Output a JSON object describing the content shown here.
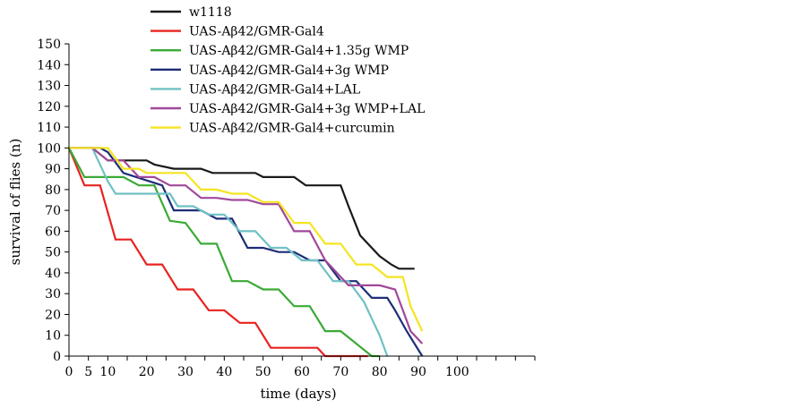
{
  "chart_data": {
    "type": "line",
    "title": "",
    "xlabel": "time (days)",
    "ylabel": "survival of flies (n)",
    "xlim": [
      0,
      120
    ],
    "ylim": [
      0,
      150
    ],
    "xticks": [
      0,
      5,
      10,
      20,
      30,
      40,
      50,
      60,
      70,
      80,
      90,
      100
    ],
    "yticks": [
      0,
      10,
      20,
      30,
      40,
      50,
      60,
      70,
      80,
      90,
      100,
      110,
      120,
      130,
      140,
      150
    ],
    "legend_position": "top",
    "series": [
      {
        "name": "w1118",
        "color": "#1a1a1a",
        "points": [
          [
            0,
            100
          ],
          [
            6,
            100
          ],
          [
            10,
            94
          ],
          [
            20,
            94
          ],
          [
            22,
            92
          ],
          [
            27,
            90
          ],
          [
            34,
            90
          ],
          [
            37,
            88
          ],
          [
            48,
            88
          ],
          [
            50,
            86
          ],
          [
            58,
            86
          ],
          [
            61,
            82
          ],
          [
            70,
            82
          ],
          [
            72,
            72
          ],
          [
            75,
            58
          ],
          [
            80,
            48
          ],
          [
            83,
            44
          ],
          [
            85,
            42
          ],
          [
            89,
            42
          ]
        ]
      },
      {
        "name": "UAS-Aβ42/GMR-Gal4",
        "color": "#e8231f",
        "points": [
          [
            0,
            100
          ],
          [
            4,
            82
          ],
          [
            8,
            82
          ],
          [
            12,
            56
          ],
          [
            16,
            56
          ],
          [
            20,
            44
          ],
          [
            24,
            44
          ],
          [
            28,
            32
          ],
          [
            32,
            32
          ],
          [
            36,
            22
          ],
          [
            40,
            22
          ],
          [
            44,
            16
          ],
          [
            48,
            16
          ],
          [
            52,
            4
          ],
          [
            64,
            4
          ],
          [
            66,
            0
          ],
          [
            77,
            0
          ]
        ]
      },
      {
        "name": "UAS-Aβ42/GMR-Gal4+1.35g WMP",
        "color": "#3aaa35",
        "points": [
          [
            0,
            100
          ],
          [
            4,
            86
          ],
          [
            14,
            86
          ],
          [
            18,
            82
          ],
          [
            22,
            82
          ],
          [
            26,
            65
          ],
          [
            30,
            64
          ],
          [
            34,
            54
          ],
          [
            38,
            54
          ],
          [
            42,
            36
          ],
          [
            46,
            36
          ],
          [
            50,
            32
          ],
          [
            54,
            32
          ],
          [
            58,
            24
          ],
          [
            62,
            24
          ],
          [
            66,
            12
          ],
          [
            70,
            12
          ],
          [
            78,
            0
          ],
          [
            80,
            0
          ]
        ]
      },
      {
        "name": "UAS-Aβ42/GMR-Gal4+3g WMP",
        "color": "#1e2d78",
        "points": [
          [
            0,
            100
          ],
          [
            8,
            100
          ],
          [
            10,
            98
          ],
          [
            14,
            88
          ],
          [
            24,
            82
          ],
          [
            27,
            70
          ],
          [
            30,
            70
          ],
          [
            34,
            70
          ],
          [
            38,
            66
          ],
          [
            42,
            66
          ],
          [
            46,
            52
          ],
          [
            50,
            52
          ],
          [
            54,
            50
          ],
          [
            58,
            50
          ],
          [
            62,
            46
          ],
          [
            66,
            46
          ],
          [
            70,
            36
          ],
          [
            74,
            36
          ],
          [
            78,
            28
          ],
          [
            82,
            28
          ],
          [
            84,
            22
          ],
          [
            87,
            12
          ],
          [
            91,
            0
          ]
        ]
      },
      {
        "name": "UAS-Aβ42/GMR-Gal4+LAL",
        "color": "#6fc1c4",
        "points": [
          [
            0,
            100
          ],
          [
            6,
            100
          ],
          [
            10,
            84
          ],
          [
            12,
            78
          ],
          [
            26,
            78
          ],
          [
            28,
            72
          ],
          [
            32,
            72
          ],
          [
            36,
            68
          ],
          [
            40,
            68
          ],
          [
            44,
            60
          ],
          [
            48,
            60
          ],
          [
            52,
            52
          ],
          [
            56,
            52
          ],
          [
            60,
            46
          ],
          [
            64,
            46
          ],
          [
            68,
            36
          ],
          [
            72,
            36
          ],
          [
            76,
            26
          ],
          [
            78,
            18
          ],
          [
            80,
            10
          ],
          [
            82,
            0
          ]
        ]
      },
      {
        "name": "UAS-Aβ42/GMR-Gal4+3g WMP+LAL",
        "color": "#a0489a",
        "points": [
          [
            0,
            100
          ],
          [
            6,
            100
          ],
          [
            10,
            94
          ],
          [
            14,
            94
          ],
          [
            18,
            86
          ],
          [
            22,
            86
          ],
          [
            26,
            82
          ],
          [
            30,
            82
          ],
          [
            34,
            76
          ],
          [
            38,
            76
          ],
          [
            42,
            75
          ],
          [
            46,
            75
          ],
          [
            50,
            73
          ],
          [
            54,
            73
          ],
          [
            58,
            60
          ],
          [
            62,
            60
          ],
          [
            66,
            46
          ],
          [
            68,
            42
          ],
          [
            72,
            34
          ],
          [
            76,
            34
          ],
          [
            80,
            34
          ],
          [
            84,
            32
          ],
          [
            86,
            22
          ],
          [
            88,
            12
          ],
          [
            91,
            6
          ]
        ]
      },
      {
        "name": "UAS-Aβ42/GMR-Gal4+curcumin",
        "color": "#f5e421",
        "points": [
          [
            0,
            100
          ],
          [
            10,
            100
          ],
          [
            14,
            90
          ],
          [
            18,
            90
          ],
          [
            20,
            88
          ],
          [
            30,
            88
          ],
          [
            34,
            80
          ],
          [
            38,
            80
          ],
          [
            42,
            78
          ],
          [
            46,
            78
          ],
          [
            50,
            74
          ],
          [
            54,
            74
          ],
          [
            58,
            64
          ],
          [
            62,
            64
          ],
          [
            66,
            54
          ],
          [
            70,
            54
          ],
          [
            74,
            44
          ],
          [
            78,
            44
          ],
          [
            82,
            38
          ],
          [
            86,
            38
          ],
          [
            88,
            24
          ],
          [
            91,
            12
          ]
        ]
      }
    ]
  }
}
